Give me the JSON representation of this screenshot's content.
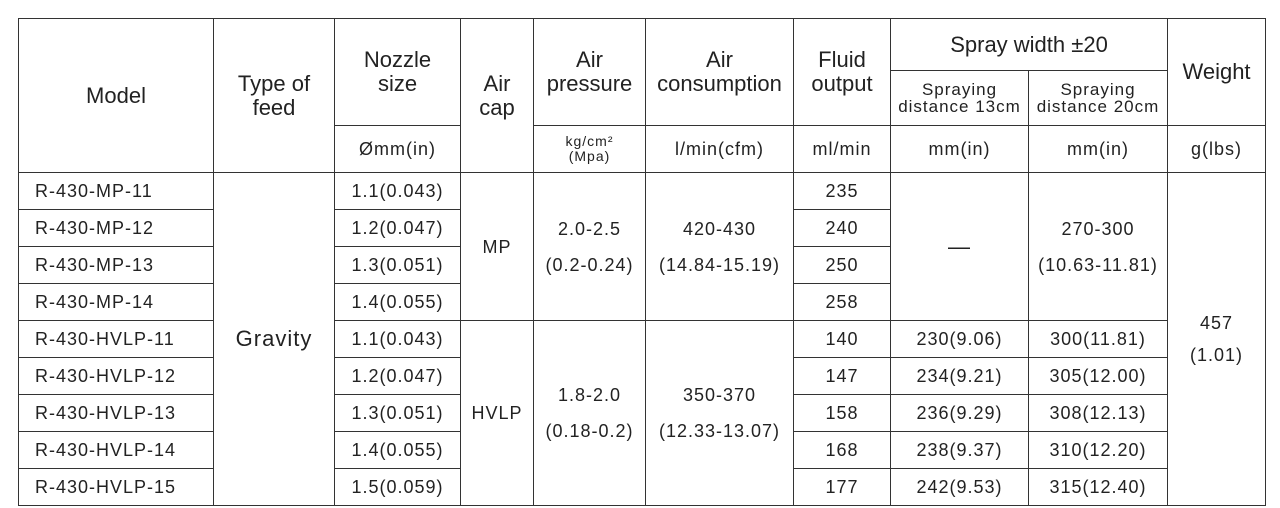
{
  "header": {
    "model": "Model",
    "type_of_feed": "Type of\nfeed",
    "nozzle_size": "Nozzle\nsize",
    "air_cap": "Air\ncap",
    "air_pressure": "Air\npressure",
    "air_consumption": "Air\nconsumption",
    "fluid_output": "Fluid\noutput",
    "spray_width": "Spray  width ±20",
    "spray_13": "Spraying\ndistance 13cm",
    "spray_20": "Spraying\ndistance 20cm",
    "weight": "Weight"
  },
  "units": {
    "nozzle_size": "Ømm(in)",
    "air_pressure": "kg/cm²\n(Mpa)",
    "air_consumption": "l/min(cfm)",
    "fluid_output": "ml/min",
    "spray_13": "mm(in)",
    "spray_20": "mm(in)",
    "weight": "g(lbs)"
  },
  "feed": "Gravity",
  "weight": "457\n(1.01)",
  "mp": {
    "air_cap": "MP",
    "air_pressure": "2.0-2.5\n(0.2-0.24)",
    "air_consumption": "420-430\n(14.84-15.19)",
    "spray_13": "—",
    "spray_20": "270-300\n(10.63-11.81)"
  },
  "hvlp": {
    "air_cap": "HVLP",
    "air_pressure": "1.8-2.0\n(0.18-0.2)",
    "air_consumption": "350-370\n(12.33-13.07)"
  },
  "rows": [
    {
      "model": "R-430-MP-11",
      "nozzle": "1.1(0.043)",
      "fluid": 235
    },
    {
      "model": "R-430-MP-12",
      "nozzle": "1.2(0.047)",
      "fluid": 240
    },
    {
      "model": "R-430-MP-13",
      "nozzle": "1.3(0.051)",
      "fluid": 250
    },
    {
      "model": "R-430-MP-14",
      "nozzle": "1.4(0.055)",
      "fluid": 258
    },
    {
      "model": "R-430-HVLP-11",
      "nozzle": "1.1(0.043)",
      "fluid": 140,
      "spray_13": "230(9.06)",
      "spray_20": "300(11.81)"
    },
    {
      "model": "R-430-HVLP-12",
      "nozzle": "1.2(0.047)",
      "fluid": 147,
      "spray_13": "234(9.21)",
      "spray_20": "305(12.00)"
    },
    {
      "model": "R-430-HVLP-13",
      "nozzle": "1.3(0.051)",
      "fluid": 158,
      "spray_13": "236(9.29)",
      "spray_20": "308(12.13)"
    },
    {
      "model": "R-430-HVLP-14",
      "nozzle": "1.4(0.055)",
      "fluid": 168,
      "spray_13": "238(9.37)",
      "spray_20": "310(12.20)"
    },
    {
      "model": "R-430-HVLP-15",
      "nozzle": "1.5(0.059)",
      "fluid": 177,
      "spray_13": "242(9.53)",
      "spray_20": "315(12.40)"
    }
  ]
}
